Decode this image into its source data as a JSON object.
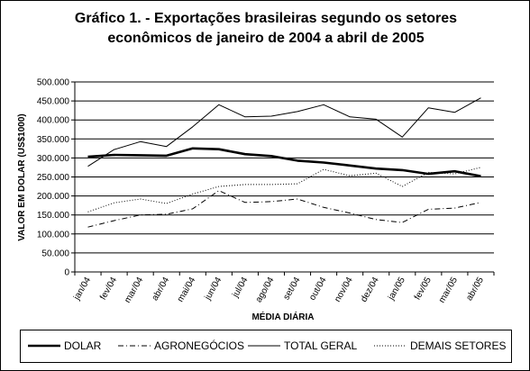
{
  "chart_data": {
    "type": "line",
    "title": [
      "Gráfico 1. - Exportações brasileiras segundo os setores",
      "econômicos de janeiro de 2004 a abril de 2005"
    ],
    "xlabel": "MÉDIA DIÁRIA",
    "ylabel": "VALOR EM DOLAR (US$1000)",
    "ylim": [
      0,
      500000
    ],
    "yticks": [
      "0",
      "50.000",
      "100.000",
      "150.000",
      "200.000",
      "250.000",
      "300.000",
      "350.000",
      "400.000",
      "450.000",
      "500.000"
    ],
    "categories": [
      "jan/04",
      "fev/04",
      "mar/04",
      "abr/04",
      "mai/04",
      "jun/04",
      "jul/04",
      "ago/04",
      "set/04",
      "out/04",
      "nov/04",
      "dez/04",
      "jan/05",
      "fev/05",
      "mar/05",
      "abr/05"
    ],
    "grid": "horizontal",
    "legend_position": "bottom",
    "series": [
      {
        "name": "DOLAR",
        "style": "solid-thick",
        "color": "#000000",
        "values": [
          303000,
          308000,
          307000,
          306000,
          325000,
          323000,
          310000,
          305000,
          293000,
          288000,
          280000,
          272000,
          268000,
          258000,
          265000,
          252000
        ]
      },
      {
        "name": "AGRONEGÓCIOS",
        "style": "dash-dot",
        "color": "#000000",
        "values": [
          118000,
          135000,
          150000,
          152000,
          166000,
          214000,
          183000,
          185000,
          192000,
          170000,
          155000,
          138000,
          130000,
          165000,
          168000,
          183000
        ]
      },
      {
        "name": "TOTAL GERAL",
        "style": "solid-thin",
        "color": "#000000",
        "values": [
          278000,
          322000,
          343000,
          330000,
          382000,
          440000,
          408000,
          410000,
          422000,
          440000,
          408000,
          402000,
          355000,
          432000,
          420000,
          458000
        ]
      },
      {
        "name": "DEMAIS SETORES",
        "style": "dotted",
        "color": "#000000",
        "values": [
          158000,
          182000,
          192000,
          180000,
          205000,
          225000,
          230000,
          230000,
          232000,
          270000,
          253000,
          260000,
          225000,
          262000,
          258000,
          275000
        ]
      }
    ]
  }
}
